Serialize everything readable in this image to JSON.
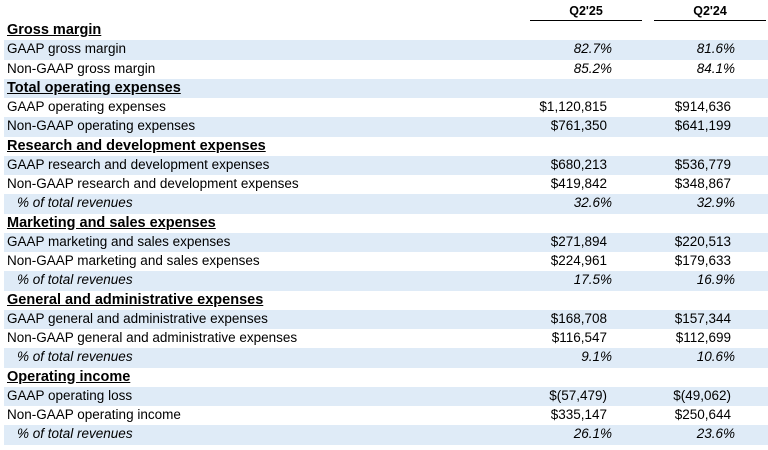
{
  "headers": {
    "col1": "Q2'25",
    "col2": "Q2'24"
  },
  "rows": [
    {
      "type": "section",
      "label": "Gross margin",
      "v1": "",
      "v2": ""
    },
    {
      "type": "line",
      "label": "GAAP gross margin",
      "v1": "82.7%",
      "v2": "81.6%",
      "shade": true,
      "italic_values": true
    },
    {
      "type": "line",
      "label": "Non-GAAP gross margin",
      "v1": "85.2%",
      "v2": "84.1%",
      "shade": false,
      "italic_values": true
    },
    {
      "type": "section",
      "label": "Total operating expenses",
      "v1": "",
      "v2": "",
      "shade": true
    },
    {
      "type": "line",
      "label": "GAAP operating expenses",
      "v1": "$1,120,815",
      "v2": "$914,636",
      "shade": false
    },
    {
      "type": "line",
      "label": "Non-GAAP operating expenses",
      "v1": "$761,350",
      "v2": "$641,199",
      "shade": true
    },
    {
      "type": "section",
      "label": "Research and development expenses",
      "v1": "",
      "v2": ""
    },
    {
      "type": "line",
      "label": "GAAP research and development expenses",
      "v1": "$680,213",
      "v2": "$536,779",
      "shade": true
    },
    {
      "type": "line",
      "label": "Non-GAAP research and development expenses",
      "v1": "$419,842",
      "v2": "$348,867",
      "shade": false
    },
    {
      "type": "pct",
      "label": "% of total revenues",
      "v1": "32.6%",
      "v2": "32.9%",
      "shade": true
    },
    {
      "type": "section",
      "label": "Marketing and sales expenses",
      "v1": "",
      "v2": ""
    },
    {
      "type": "line",
      "label": "GAAP marketing and sales expenses",
      "v1": "$271,894",
      "v2": "$220,513",
      "shade": true
    },
    {
      "type": "line",
      "label": "Non-GAAP marketing and sales expenses",
      "v1": "$224,961",
      "v2": "$179,633",
      "shade": false
    },
    {
      "type": "pct",
      "label": "% of total revenues",
      "v1": "17.5%",
      "v2": "16.9%",
      "shade": true
    },
    {
      "type": "section",
      "label": "General and administrative expenses",
      "v1": "",
      "v2": ""
    },
    {
      "type": "line",
      "label": "GAAP general and administrative expenses",
      "v1": "$168,708",
      "v2": "$157,344",
      "shade": true
    },
    {
      "type": "line",
      "label": "Non-GAAP general and administrative expenses",
      "v1": "$116,547",
      "v2": "$112,699",
      "shade": false
    },
    {
      "type": "pct",
      "label": "% of total revenues",
      "v1": "9.1%",
      "v2": "10.6%",
      "shade": true
    },
    {
      "type": "section",
      "label": "Operating income",
      "v1": "",
      "v2": ""
    },
    {
      "type": "line",
      "label": "GAAP operating loss",
      "v1": "$(57,479)",
      "v2": "$(49,062)",
      "shade": true
    },
    {
      "type": "line",
      "label": "Non-GAAP operating income",
      "v1": "$335,147",
      "v2": "$250,644",
      "shade": false
    },
    {
      "type": "pct",
      "label": "% of total revenues",
      "v1": "26.1%",
      "v2": "23.6%",
      "shade": true
    }
  ]
}
